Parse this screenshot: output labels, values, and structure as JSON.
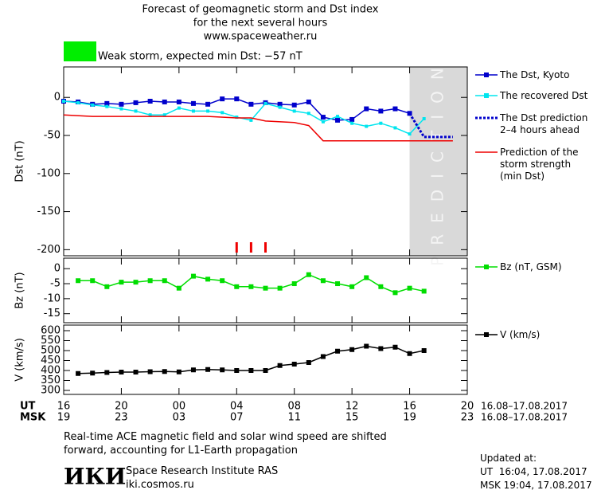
{
  "header": {
    "title": [
      "Forecast of geomagnetic storm and Dst index",
      "for the next several hours",
      "www.spaceweather.ru"
    ],
    "status": "Weak storm, expected min Dst: −57 nT"
  },
  "chart_data": [
    {
      "type": "line",
      "ylabel": "Dst (nT)",
      "xlim": [
        0,
        28
      ],
      "ylim": [
        -208,
        40
      ],
      "xticks": [
        0,
        4,
        8,
        12,
        16,
        20,
        24,
        28
      ],
      "yticks": [
        0,
        -50,
        -100,
        -150,
        -200
      ],
      "shade": {
        "x": [
          24,
          28
        ],
        "label": "PREDICTION"
      },
      "storm_marks_x": [
        12,
        13,
        14
      ],
      "series": [
        {
          "name": "The Dst, Kyoto",
          "color": "#0000cc",
          "marker": "square",
          "dash": false,
          "x": [
            0,
            1,
            2,
            3,
            4,
            5,
            6,
            7,
            8,
            9,
            10,
            11,
            12,
            13,
            14,
            15,
            16,
            17,
            18,
            19,
            20,
            21,
            22,
            23,
            24
          ],
          "values": [
            -5,
            -6,
            -9,
            -8,
            -9,
            -7,
            -5,
            -6,
            -6,
            -8,
            -9,
            -2,
            -2,
            -9,
            -7,
            -9,
            -10,
            -6,
            -26,
            -30,
            -29,
            -15,
            -18,
            -15,
            -21
          ]
        },
        {
          "name": "The recovered Dst",
          "color": "#00e5ee",
          "marker": "small",
          "dash": false,
          "x": [
            0,
            1,
            2,
            3,
            4,
            5,
            6,
            7,
            8,
            9,
            10,
            11,
            12,
            13,
            14,
            15,
            16,
            17,
            18,
            19,
            20,
            21,
            22,
            23,
            24,
            25
          ],
          "values": [
            -5,
            -7,
            -10,
            -12,
            -15,
            -18,
            -23,
            -23,
            -14,
            -18,
            -18,
            -20,
            -26,
            -30,
            -8,
            -13,
            -18,
            -21,
            -32,
            -25,
            -34,
            -38,
            -34,
            -40,
            -48,
            -28
          ]
        },
        {
          "name": "The Dst prediction\n2–4 hours ahead",
          "color": "#0000cc",
          "marker": "none",
          "dash": true,
          "x": [
            24,
            25,
            26,
            27
          ],
          "values": [
            -21,
            -52,
            -52,
            -52
          ]
        },
        {
          "name": "Prediction of the\nstorm strength\n(min Dst)",
          "color": "#ee0000",
          "marker": "none",
          "dash": false,
          "x": [
            0,
            2,
            10,
            12,
            13,
            14,
            16,
            17,
            18,
            27
          ],
          "values": [
            -23,
            -25,
            -25,
            -27,
            -27,
            -31,
            -33,
            -37,
            -57,
            -57
          ]
        }
      ]
    },
    {
      "type": "line",
      "ylabel": "Bz (nT)",
      "xlim": [
        0,
        28
      ],
      "ylim": [
        -18,
        3.5
      ],
      "xticks": [
        0,
        4,
        8,
        12,
        16,
        20,
        24,
        28
      ],
      "yticks": [
        0,
        -5,
        -10,
        -15
      ],
      "series": [
        {
          "name": "Bz (nT, GSM)",
          "color": "#00dd00",
          "marker": "square",
          "dash": false,
          "x": [
            1,
            2,
            3,
            4,
            5,
            6,
            7,
            8,
            9,
            10,
            11,
            12,
            13,
            14,
            15,
            16,
            17,
            18,
            19,
            20,
            21,
            22,
            23,
            24,
            25
          ],
          "values": [
            -4,
            -4,
            -6,
            -4.5,
            -4.5,
            -4,
            -4,
            -6.5,
            -2.5,
            -3.5,
            -4,
            -6,
            -6,
            -6.5,
            -6.5,
            -5,
            -2,
            -4,
            -5,
            -6,
            -3,
            -6,
            -8,
            -6.5,
            -7.5
          ]
        }
      ]
    },
    {
      "type": "line",
      "ylabel": "V (km/s)",
      "xlim": [
        0,
        28
      ],
      "ylim": [
        280,
        628
      ],
      "xticks": [
        {
          "value": 0,
          "label": "16"
        },
        {
          "value": 4,
          "label": "20"
        },
        {
          "value": 8,
          "label": "00"
        },
        {
          "value": 12,
          "label": "04"
        },
        {
          "value": 16,
          "label": "08"
        },
        {
          "value": 20,
          "label": "12"
        },
        {
          "value": 24,
          "label": "16"
        },
        {
          "value": 28,
          "label": "20"
        }
      ],
      "x2ticks": [
        {
          "value": 0,
          "label": "19"
        },
        {
          "value": 4,
          "label": "23"
        },
        {
          "value": 8,
          "label": "03"
        },
        {
          "value": 12,
          "label": "07"
        },
        {
          "value": 16,
          "label": "11"
        },
        {
          "value": 20,
          "label": "15"
        },
        {
          "value": 24,
          "label": "19"
        },
        {
          "value": 28,
          "label": "23"
        }
      ],
      "xrow_labels": [
        "UT",
        "MSK"
      ],
      "date_range": [
        "16.08–17.08.2017",
        "16.08–17.08.2017"
      ],
      "yticks": [
        600,
        550,
        500,
        450,
        400,
        350,
        300
      ],
      "series": [
        {
          "name": "V (km/s)",
          "color": "#000000",
          "marker": "square",
          "dash": false,
          "x": [
            1,
            2,
            3,
            4,
            5,
            6,
            7,
            8,
            9,
            10,
            11,
            12,
            13,
            14,
            15,
            16,
            17,
            18,
            19,
            20,
            21,
            22,
            23,
            24,
            25
          ],
          "values": [
            385,
            387,
            390,
            392,
            392,
            394,
            395,
            393,
            403,
            405,
            403,
            400,
            400,
            400,
            425,
            432,
            440,
            470,
            497,
            505,
            522,
            510,
            517,
            485,
            500
          ]
        }
      ]
    }
  ],
  "footer": {
    "note": "Real-time ACE magnetic field and solar wind speed are shifted\nforward, accounting for L1-Earth propagation",
    "logo": "ИКИ",
    "institute": "Space Research Institute RAS",
    "site": "iki.cosmos.ru",
    "updated_title": "Updated at:",
    "updated": [
      "UT  16:04, 17.08.2017",
      "MSK 19:04, 17.08.2017"
    ]
  }
}
